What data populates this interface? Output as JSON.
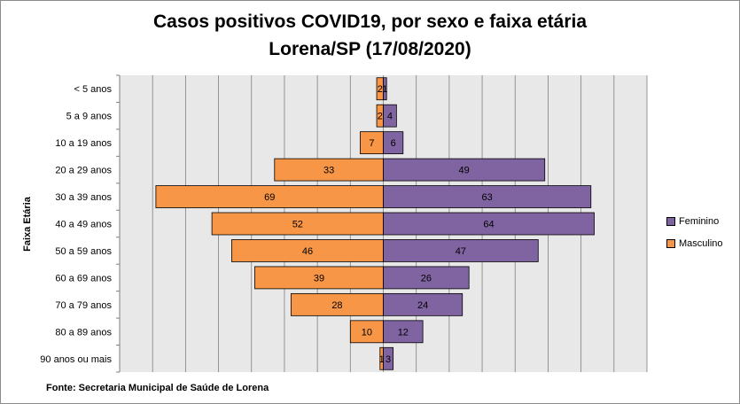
{
  "chart_data": {
    "type": "bar",
    "orientation": "horizontal-population-pyramid",
    "title": "Casos positivos COVID19, por sexo e faixa etária",
    "subtitle": "Lorena/SP (17/08/2020)",
    "ylabel": "Faixa Etária",
    "xlabel": "",
    "categories": [
      "< 5 anos",
      "5 a 9 anos",
      "10 a 19 anos",
      "20 a 29 anos",
      "30 a 39 anos",
      "40 a 49 anos",
      "50 a 59 anos",
      "60 a 69 anos",
      "70 a 79 anos",
      "80 a 89 anos",
      "90 anos ou mais"
    ],
    "series": [
      {
        "name": "Feminino",
        "values": [
          1,
          4,
          6,
          49,
          63,
          64,
          47,
          26,
          24,
          12,
          3
        ],
        "color": "#8064a2",
        "side": "right"
      },
      {
        "name": "Masculino",
        "values": [
          2,
          2,
          7,
          33,
          69,
          52,
          46,
          39,
          28,
          10,
          1
        ],
        "color": "#f79646",
        "side": "left"
      }
    ],
    "xlim": [
      -80,
      80
    ],
    "grid": "vertical",
    "legend_position": "right",
    "plot_background": "#e8e8e8"
  },
  "source_note": "Fonte: Secretaria Municipal  de Saúde de Lorena"
}
